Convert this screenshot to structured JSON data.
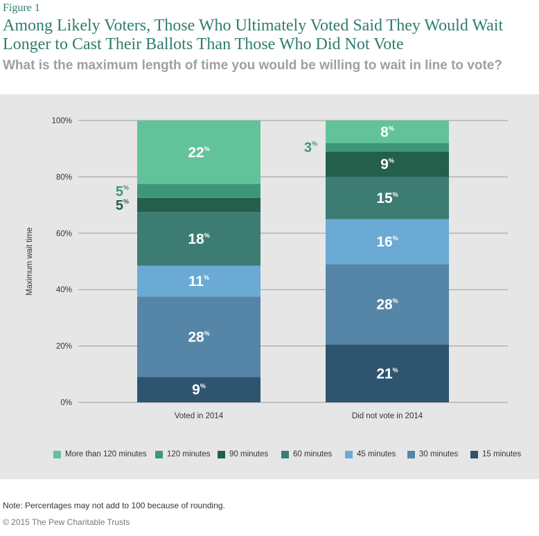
{
  "header": {
    "figure_label": "Figure 1",
    "title": "Among Likely Voters, Those Who Ultimately Voted Said They Would Wait Longer to Cast Their Ballots Than Those Who Did Not Vote",
    "subtitle": "What is the maximum length of time you would be willing to wait in line to vote?"
  },
  "footer": {
    "note": "Note: Percentages may not add to 100 because of rounding.",
    "copyright": "© 2015 The Pew Charitable Trusts"
  },
  "chart_data": {
    "type": "bar",
    "stacked": true,
    "categories": [
      "Voted in 2014",
      "Did not vote in 2014"
    ],
    "ylabel": "Maximum wait time",
    "xlabel": "",
    "ylim": [
      0,
      100
    ],
    "y_ticks": [
      "0%",
      "20%",
      "40%",
      "60%",
      "80%",
      "100%"
    ],
    "grid": true,
    "legend_position": "bottom",
    "series": [
      {
        "name": "15 minutes",
        "color": "#2e5470",
        "values": [
          9,
          21
        ]
      },
      {
        "name": "30 minutes",
        "color": "#5585a7",
        "values": [
          28,
          28
        ]
      },
      {
        "name": "45 minutes",
        "color": "#6aaad4",
        "values": [
          11,
          16
        ]
      },
      {
        "name": "60 minutes",
        "color": "#3d7c73",
        "values": [
          18,
          15
        ]
      },
      {
        "name": "90 minutes",
        "color": "#235f4a",
        "values": [
          5,
          9
        ]
      },
      {
        "name": "120 minutes",
        "color": "#3e9679",
        "values": [
          5,
          3
        ]
      },
      {
        "name": "More than 120 minutes",
        "color": "#62c39b",
        "values": [
          22,
          8
        ]
      }
    ],
    "segment_bounds": [
      [
        0,
        9,
        37.5,
        48.5,
        67.5,
        72.5,
        77.5,
        100
      ],
      [
        0,
        20.5,
        49,
        65,
        80,
        89,
        92,
        100
      ]
    ],
    "data_labels": [
      [
        "9",
        "28",
        "11",
        "18",
        "5",
        "5",
        "22"
      ],
      [
        "21",
        "28",
        "16",
        "15",
        "9",
        "3",
        "8"
      ]
    ],
    "outside_labels": [
      [
        false,
        false,
        false,
        false,
        true,
        true,
        false
      ],
      [
        false,
        false,
        false,
        false,
        false,
        true,
        false
      ]
    ],
    "percent_symbol": "%"
  }
}
